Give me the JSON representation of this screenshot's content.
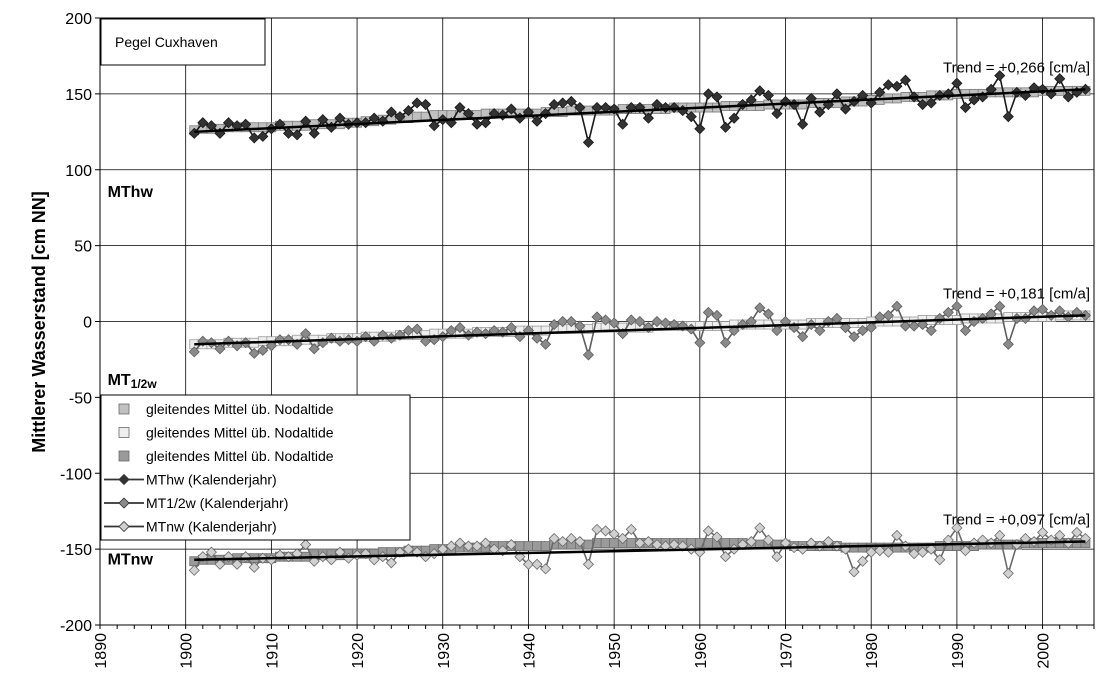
{
  "chart_data": {
    "type": "line",
    "title": "",
    "station_label": "Pegel Cuxhaven",
    "ylabel": "Mittlerer Wasserstand [cm NN]",
    "xlabel": "",
    "xlim": [
      1890,
      2006
    ],
    "ylim": [
      -200,
      200
    ],
    "x_ticks": [
      "1890",
      "1900",
      "1910",
      "1920",
      "1930",
      "1940",
      "1950",
      "1960",
      "1970",
      "1980",
      "1990",
      "2000"
    ],
    "y_ticks": [
      "200",
      "150",
      "100",
      "50",
      "0",
      "-50",
      "-100",
      "-150",
      "-200"
    ],
    "grid": true,
    "legend_position": "left",
    "legend": [
      {
        "label": "gleitendes Mittel üb. Nodaltide",
        "marker": "square",
        "fill": "#c0c0c0"
      },
      {
        "label": "gleitendes Mittel üb. Nodaltide",
        "marker": "square",
        "fill": "#eeeeee"
      },
      {
        "label": "gleitendes Mittel üb. Nodaltide",
        "marker": "square",
        "fill": "#9a9a9a"
      },
      {
        "label": "MThw (Kalenderjahr)",
        "marker": "diamond",
        "fill": "#333333"
      },
      {
        "label": "MT1/2w (Kalenderjahr)",
        "marker": "diamond",
        "fill": "#8a8a8a"
      },
      {
        "label": "MTnw (Kalenderjahr)",
        "marker": "diamond",
        "fill": "#d0d0d0"
      }
    ],
    "panel_labels": [
      {
        "main": "MThw",
        "sub": "",
        "year": 1891,
        "value": 82
      },
      {
        "main": "MT",
        "sub": "1/2w",
        "year": 1891,
        "value": -42
      },
      {
        "main": "MTnw",
        "sub": "",
        "year": 1891,
        "value": -160
      }
    ],
    "trends": [
      {
        "label": "Trend = +0,266 [cm/a]",
        "start": [
          1901,
          125
        ],
        "end": [
          2005,
          153
        ]
      },
      {
        "label": "Trend = +0,181 [cm/a]",
        "start": [
          1901,
          -15
        ],
        "end": [
          2005,
          4
        ]
      },
      {
        "label": "Trend = +0,097 [cm/a]",
        "start": [
          1901,
          -157
        ],
        "end": [
          2005,
          -145
        ]
      }
    ],
    "series": [
      {
        "name": "MThw (Kalenderjahr)",
        "start_year": 1901,
        "values": [
          124,
          131,
          129,
          124,
          131,
          129,
          130,
          121,
          122,
          127,
          130,
          124,
          123,
          132,
          124,
          133,
          128,
          134,
          130,
          131,
          131,
          134,
          132,
          138,
          135,
          139,
          144,
          143,
          129,
          133,
          131,
          141,
          137,
          130,
          131,
          137,
          136,
          140,
          134,
          138,
          132,
          137,
          143,
          144,
          145,
          141,
          118,
          141,
          141,
          140,
          130,
          141,
          141,
          134,
          143,
          141,
          141,
          139,
          135,
          127,
          150,
          148,
          128,
          134,
          143,
          146,
          152,
          149,
          137,
          145,
          143,
          130,
          147,
          138,
          143,
          150,
          140,
          145,
          149,
          144,
          151,
          156,
          155,
          159,
          148,
          143,
          144,
          149,
          150,
          157,
          141,
          146,
          148,
          153,
          162,
          135,
          151,
          149,
          154,
          153,
          150,
          160,
          148,
          151,
          153
        ]
      },
      {
        "name": "MT1/2w (Kalenderjahr)",
        "start_year": 1901,
        "values": [
          -20,
          -13,
          -14,
          -18,
          -13,
          -16,
          -14,
          -21,
          -19,
          -16,
          -12,
          -12,
          -15,
          -8,
          -18,
          -14,
          -11,
          -13,
          -12,
          -13,
          -10,
          -13,
          -9,
          -11,
          -9,
          -6,
          -5,
          -13,
          -12,
          -10,
          -6,
          -4,
          -9,
          -7,
          -8,
          -6,
          -7,
          -4,
          -10,
          -6,
          -11,
          -15,
          -2,
          0,
          0,
          -3,
          -22,
          3,
          1,
          -1,
          -8,
          1,
          0,
          -4,
          0,
          -1,
          -2,
          -3,
          -5,
          -14,
          6,
          4,
          -14,
          -6,
          -2,
          0,
          9,
          5,
          -6,
          0,
          -4,
          -10,
          -2,
          -6,
          0,
          2,
          -4,
          -10,
          -6,
          -4,
          3,
          4,
          10,
          -3,
          -3,
          -2,
          -6,
          2,
          6,
          10,
          -6,
          0,
          2,
          5,
          10,
          -15,
          2,
          2,
          7,
          8,
          4,
          7,
          3,
          6,
          4
        ]
      },
      {
        "name": "MTnw (Kalenderjahr)",
        "start_year": 1901,
        "values": [
          -164,
          -155,
          -152,
          -160,
          -155,
          -160,
          -155,
          -162,
          -156,
          -157,
          -154,
          -155,
          -153,
          -147,
          -158,
          -155,
          -157,
          -152,
          -156,
          -154,
          -153,
          -157,
          -155,
          -159,
          -152,
          -150,
          -152,
          -155,
          -153,
          -150,
          -148,
          -146,
          -148,
          -148,
          -146,
          -150,
          -151,
          -147,
          -155,
          -160,
          -160,
          -163,
          -143,
          -145,
          -143,
          -145,
          -160,
          -137,
          -138,
          -140,
          -143,
          -137,
          -146,
          -145,
          -147,
          -148,
          -147,
          -148,
          -150,
          -152,
          -138,
          -142,
          -155,
          -150,
          -147,
          -145,
          -136,
          -144,
          -155,
          -146,
          -149,
          -150,
          -146,
          -148,
          -145,
          -148,
          -150,
          -165,
          -158,
          -152,
          -151,
          -152,
          -141,
          -148,
          -153,
          -152,
          -150,
          -157,
          -144,
          -136,
          -151,
          -146,
          -144,
          -146,
          -141,
          -166,
          -147,
          -143,
          -145,
          -139,
          -144,
          -141,
          -146,
          -139,
          -143
        ]
      },
      {
        "name": "gleitendes Mittel üb. Nodaltide",
        "start_year": 1901,
        "values": [
          126,
          127,
          127,
          127,
          128,
          128,
          128,
          128,
          128,
          128,
          129,
          129,
          129,
          129,
          130,
          130,
          130,
          130,
          131,
          131,
          132,
          132,
          133,
          133,
          134,
          134,
          135,
          135,
          136,
          136,
          136,
          136,
          136,
          136,
          137,
          137,
          137,
          137,
          137,
          137,
          137,
          138,
          138,
          138,
          139,
          139,
          139,
          139,
          139,
          139,
          140,
          140,
          140,
          140,
          140,
          140,
          141,
          141,
          141,
          141,
          141,
          141,
          142,
          142,
          142,
          142,
          142,
          143,
          143,
          143,
          143,
          143,
          144,
          144,
          144,
          144,
          145,
          145,
          145,
          146,
          146,
          147,
          147,
          148,
          148,
          148,
          149,
          149,
          149,
          150,
          150,
          150,
          150,
          151,
          151,
          151,
          151,
          151,
          151,
          152,
          152,
          152,
          152,
          152,
          152
        ]
      },
      {
        "name": "gleitendes Mittel üb. Nodaltide",
        "start_year": 1901,
        "values": [
          -15,
          -15,
          -15,
          -15,
          -14,
          -14,
          -14,
          -14,
          -13,
          -13,
          -13,
          -13,
          -12,
          -12,
          -12,
          -12,
          -11,
          -11,
          -11,
          -11,
          -10,
          -10,
          -10,
          -10,
          -9,
          -9,
          -9,
          -9,
          -8,
          -8,
          -8,
          -8,
          -8,
          -7,
          -7,
          -7,
          -7,
          -7,
          -6,
          -6,
          -6,
          -6,
          -5,
          -5,
          -5,
          -5,
          -5,
          -4,
          -4,
          -4,
          -4,
          -4,
          -4,
          -4,
          -3,
          -3,
          -3,
          -3,
          -3,
          -3,
          -3,
          -3,
          -3,
          -2,
          -2,
          -2,
          -2,
          -2,
          -2,
          -2,
          -2,
          -2,
          -1,
          -1,
          -1,
          -1,
          -1,
          -1,
          -1,
          0,
          0,
          0,
          0,
          0,
          0,
          1,
          1,
          1,
          1,
          1,
          2,
          2,
          2,
          2,
          2,
          3,
          3,
          3,
          3,
          3,
          3,
          4,
          4,
          4,
          4
        ]
      },
      {
        "name": "gleitendes Mittel üb. Nodaltide",
        "start_year": 1901,
        "values": [
          -158,
          -157,
          -157,
          -157,
          -157,
          -156,
          -156,
          -156,
          -156,
          -156,
          -155,
          -155,
          -155,
          -155,
          -154,
          -154,
          -154,
          -154,
          -153,
          -153,
          -153,
          -153,
          -152,
          -152,
          -152,
          -151,
          -151,
          -151,
          -150,
          -150,
          -150,
          -149,
          -149,
          -149,
          -149,
          -148,
          -148,
          -148,
          -148,
          -148,
          -148,
          -148,
          -147,
          -147,
          -147,
          -147,
          -147,
          -146,
          -146,
          -146,
          -146,
          -146,
          -146,
          -146,
          -146,
          -146,
          -146,
          -146,
          -146,
          -146,
          -146,
          -146,
          -146,
          -146,
          -146,
          -147,
          -147,
          -147,
          -147,
          -147,
          -148,
          -148,
          -148,
          -148,
          -148,
          -148,
          -149,
          -149,
          -149,
          -149,
          -149,
          -149,
          -149,
          -149,
          -149,
          -149,
          -149,
          -148,
          -148,
          -148,
          -148,
          -148,
          -147,
          -147,
          -147,
          -147,
          -147,
          -146,
          -146,
          -146,
          -146,
          -146,
          -146,
          -146,
          -146
        ]
      }
    ]
  }
}
